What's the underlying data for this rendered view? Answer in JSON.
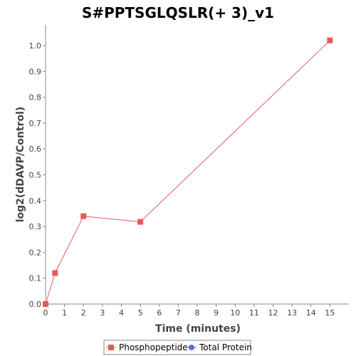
{
  "chart_data": {
    "type": "line",
    "title": "S#PPTSGLQSLR(+ 3)_v1",
    "xlabel": "Time (minutes)",
    "ylabel": "log2(dDAVP/Control)",
    "xlim": [
      0,
      16
    ],
    "ylim": [
      0,
      1.08
    ],
    "x_ticks": [
      "0",
      "1",
      "2",
      "3",
      "4",
      "5",
      "6",
      "7",
      "8",
      "9",
      "10",
      "11",
      "12",
      "13",
      "14",
      "15"
    ],
    "y_ticks": [
      "0.0",
      "0.1",
      "0.2",
      "0.3",
      "0.4",
      "0.5",
      "0.6",
      "0.7",
      "0.8",
      "0.9",
      "1.0"
    ],
    "grid": false,
    "legend_position": "bottom",
    "series": [
      {
        "name": "Phosphopeptide",
        "color": "#e8585a",
        "marker": "square",
        "x": [
          0,
          0.5,
          2,
          5,
          15
        ],
        "y": [
          0.0,
          0.12,
          0.34,
          0.318,
          1.02
        ]
      },
      {
        "name": "Total Protein",
        "color": "#5b6be8",
        "marker": "circle",
        "x": [],
        "y": []
      }
    ]
  }
}
